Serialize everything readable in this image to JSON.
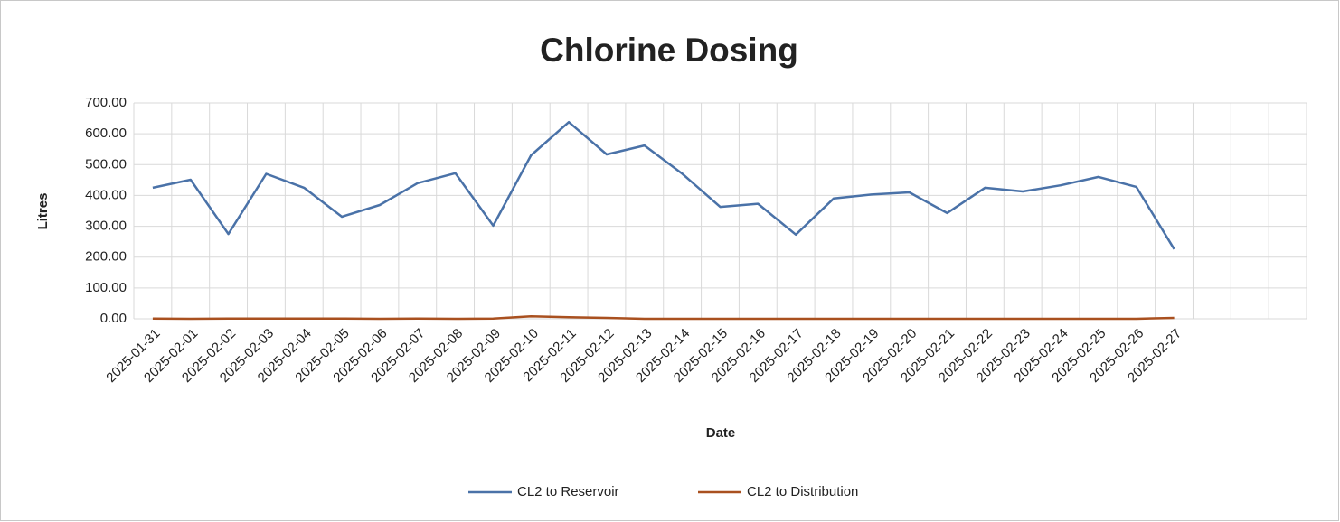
{
  "chart_data": {
    "type": "line",
    "title": "Chlorine Dosing",
    "y_label": "Litres",
    "x_label": "Date",
    "categories": [
      "2025-01-31",
      "2025-02-01",
      "2025-02-02",
      "2025-02-03",
      "2025-02-04",
      "2025-02-05",
      "2025-02-06",
      "2025-02-07",
      "2025-02-08",
      "2025-02-09",
      "2025-02-10",
      "2025-02-11",
      "2025-02-12",
      "2025-02-13",
      "2025-02-14",
      "2025-02-15",
      "2025-02-16",
      "2025-02-17",
      "2025-02-18",
      "2025-02-19",
      "2025-02-20",
      "2025-02-21",
      "2025-02-22",
      "2025-02-23",
      "2025-02-24",
      "2025-02-25",
      "2025-02-26",
      "2025-02-27",
      null,
      null,
      null
    ],
    "series": [
      {
        "name": "CL2 to Reservoir",
        "color": "#4a72a8",
        "values": [
          425,
          451,
          275,
          470,
          425,
          331,
          369,
          440,
          472,
          302,
          530,
          638,
          533,
          562,
          470,
          363,
          373,
          273,
          390,
          403,
          410,
          343,
          425,
          413,
          433,
          460,
          428,
          226,
          null,
          null,
          null
        ]
      },
      {
        "name": "CL2 to Distribution",
        "color": "#a9501f",
        "values": [
          1,
          0,
          1,
          1,
          1,
          1,
          0,
          1,
          0,
          1,
          8,
          5,
          3,
          0,
          0,
          0,
          0,
          0,
          0,
          0,
          0,
          0,
          0,
          0,
          0,
          0,
          0,
          3,
          null,
          null,
          null
        ]
      }
    ],
    "ylim": [
      0,
      700
    ],
    "yticks": [
      {
        "value": 0,
        "label": "0.00"
      },
      {
        "value": 100,
        "label": "100.00"
      },
      {
        "value": 200,
        "label": "200.00"
      },
      {
        "value": 300,
        "label": "300.00"
      },
      {
        "value": 400,
        "label": "400.00"
      },
      {
        "value": 500,
        "label": "500.00"
      },
      {
        "value": 600,
        "label": "600.00"
      },
      {
        "value": 700,
        "label": "700.00"
      }
    ],
    "grid": true,
    "legend": "bottom"
  }
}
